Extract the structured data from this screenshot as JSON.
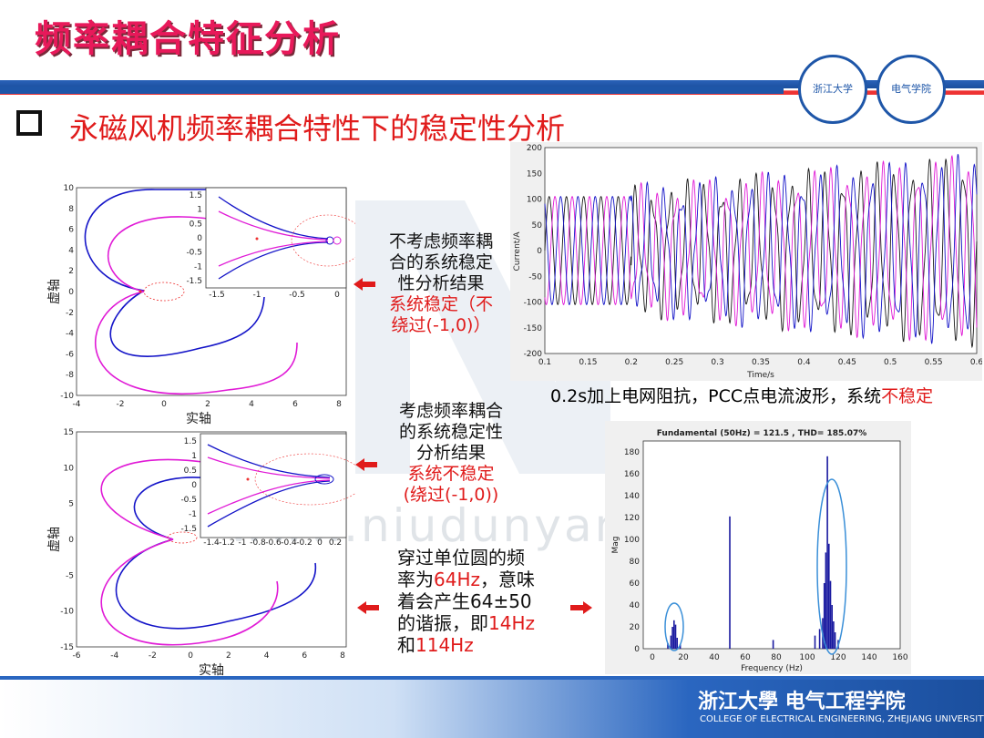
{
  "header": {
    "title": "频率耦合特征分析",
    "subtitle": "永磁风机频率耦合特性下的稳定性分析"
  },
  "notes": {
    "note1_lines": [
      "不考虑频率耦",
      "合的系统稳定",
      "性分析结果"
    ],
    "note1_red": [
      "系统稳定（不",
      "绕过(-1,0)）"
    ],
    "note2_lines": [
      "考虑频率耦合",
      "的系统稳定性",
      "分析结果"
    ],
    "note2_red": [
      "系统不稳定",
      "(绕过(-1,0))"
    ],
    "note3_line1": "穿过单位圆的频",
    "note3_line2a": "率为",
    "note3_line2b": "64Hz",
    "note3_line2c": "，意味",
    "note3_line3": "着会产生64±50",
    "note3_line4a": "的谐振，即",
    "note3_line4b": "14Hz",
    "note3_line5a": "和",
    "note3_line5b": "114Hz"
  },
  "waveform_caption": {
    "text": "0.2s加上电网阻抗，PCC点电流波形，系统",
    "red": "不稳定"
  },
  "plots": {
    "nyquist_top": {
      "xlabel": "实轴",
      "ylabel": "虚轴",
      "xticks": [
        "-4",
        "-2",
        "0",
        "2",
        "4",
        "6",
        "8"
      ],
      "yticks": [
        "10",
        "8",
        "6",
        "4",
        "2",
        "0",
        "-2",
        "-4",
        "-6",
        "-8",
        "-10"
      ],
      "inset_xticks": [
        "-1.5",
        "-1",
        "-0.5",
        "0"
      ],
      "inset_yticks": [
        "1.5",
        "1",
        "0.5",
        "0",
        "-0.5",
        "-1",
        "-1.5"
      ]
    },
    "nyquist_bottom": {
      "xlabel": "实轴",
      "ylabel": "虚轴",
      "xticks": [
        "-6",
        "-4",
        "-2",
        "0",
        "2",
        "4",
        "6",
        "8"
      ],
      "yticks": [
        "15",
        "10",
        "5",
        "0",
        "-5",
        "-10",
        "-15"
      ],
      "inset_xticks": [
        "-1.4",
        "-1.2",
        "-1",
        "-0.8",
        "-0.6",
        "-0.4",
        "-0.2",
        "0",
        "0.2"
      ],
      "inset_yticks": [
        "1.5",
        "1",
        "0.5",
        "0",
        "-0.5",
        "-1",
        "-1.5"
      ]
    },
    "waveform": {
      "xlabel": "Time/s",
      "ylabel": "Current/A",
      "xticks": [
        "0.1",
        "0.15",
        "0.2",
        "0.25",
        "0.3",
        "0.35",
        "0.4",
        "0.45",
        "0.5",
        "0.55",
        "0.6"
      ],
      "yticks": [
        "200",
        "150",
        "100",
        "50",
        "0",
        "-50",
        "-100",
        "-150",
        "-200"
      ]
    },
    "fft": {
      "title": "Fundamental (50Hz) = 121.5 , THD= 185.07%",
      "xlabel": "Frequency (Hz)",
      "ylabel": "Mag",
      "xticks": [
        "0",
        "20",
        "40",
        "60",
        "80",
        "100",
        "120",
        "140",
        "160"
      ],
      "yticks": [
        "180",
        "160",
        "140",
        "120",
        "100",
        "80",
        "60",
        "40",
        "20",
        "0"
      ]
    }
  },
  "chart_data": [
    {
      "type": "bar",
      "title": "Fundamental (50Hz) = 121.5 , THD= 185.07%",
      "xlabel": "Frequency (Hz)",
      "ylabel": "Mag",
      "xlim": [
        0,
        160
      ],
      "ylim": [
        0,
        190
      ],
      "x": [
        10,
        12,
        13,
        14,
        15,
        16,
        18,
        50,
        78,
        105,
        108,
        110,
        111,
        112,
        113,
        114,
        115,
        116,
        117,
        118,
        120
      ],
      "values": [
        5,
        12,
        20,
        26,
        22,
        10,
        4,
        121,
        8,
        12,
        18,
        28,
        60,
        88,
        176,
        96,
        62,
        40,
        25,
        15,
        8
      ]
    }
  ],
  "footer": {
    "school_cn": "浙江大學 电气工程学院",
    "school_en": "COLLEGE OF ELECTRICAL ENGINEERING, ZHEJIANG UNIVERSITY",
    "logo1": "浙江大学",
    "logo2": "电气学院",
    "watermark": "www.niudunyan.com"
  },
  "colors": {
    "accent": "#e8195a",
    "blue": "#1e56a8",
    "red": "#e01b1b"
  }
}
